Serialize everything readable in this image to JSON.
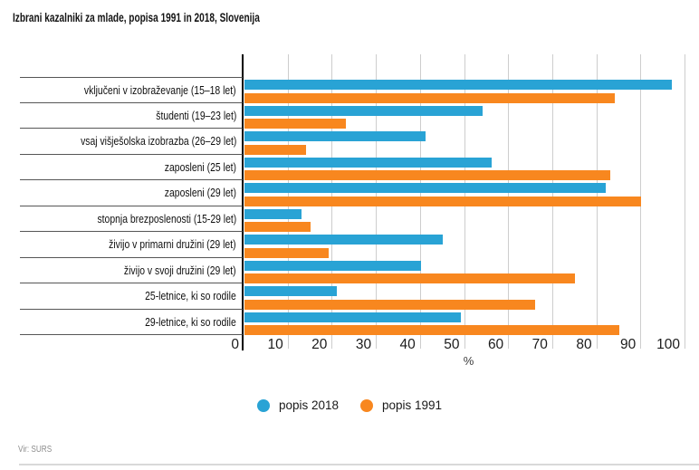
{
  "title": "Izbrani kazalniki za mlade, popisa 1991 in 2018, Slovenija",
  "source": "Vir: SURS",
  "colors": {
    "popis_2018": "#29a3d5",
    "popis_1991": "#f8871f"
  },
  "chart_data": {
    "type": "bar",
    "orientation": "horizontal",
    "title": "Izbrani kazalniki za mlade, popisa 1991 in 2018, Slovenija",
    "categories": [
      "vključeni v izobraževanje (15–18 let)",
      "študenti (19–23 let)",
      "vsaj višješolska izobrazba (26–29 let)",
      "zaposleni (25 let)",
      "zaposleni (29 let)",
      "stopnja brezposlenosti (15-29 let)",
      "živijo v primarni družini (29 let)",
      "živijo v svoji družini (29 let)",
      "25-letnice, ki so rodile",
      "29-letnice, ki so rodile"
    ],
    "series": [
      {
        "name": "popis 2018",
        "color": "#29a3d5",
        "values": [
          97,
          54,
          41,
          56,
          82,
          13,
          45,
          40,
          21,
          49
        ]
      },
      {
        "name": "popis 1991",
        "color": "#f8871f",
        "values": [
          84,
          23,
          14,
          83,
          90,
          15,
          19,
          75,
          66,
          85
        ]
      }
    ],
    "xlabel": "%",
    "xlim": [
      0,
      100
    ],
    "xticks": [
      0,
      10,
      20,
      30,
      40,
      50,
      60,
      70,
      80,
      90,
      100
    ],
    "grid": true,
    "legend_position": "bottom"
  }
}
